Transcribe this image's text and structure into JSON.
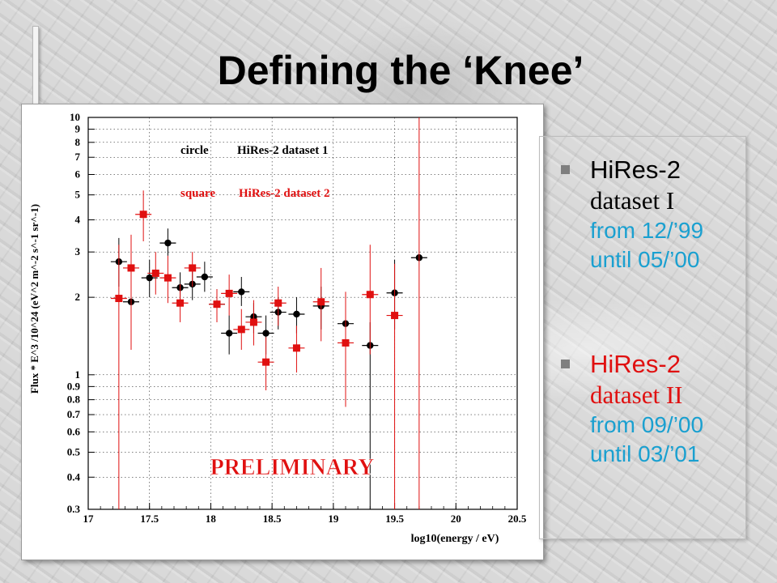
{
  "title": "Defining the ‘Knee’",
  "bullets": [
    {
      "line1": "HiRes-2",
      "line2": "dataset I",
      "date1": "from 12/’99",
      "date2": "until 05/’00",
      "color": "#000000"
    },
    {
      "line1": "HiRes-2",
      "line2": "dataset II",
      "date1": "from 09/’00",
      "date2": "until 03/’01",
      "color": "#e01010"
    }
  ],
  "stamp": "PRELIMINARY",
  "chart_data": {
    "type": "scatter",
    "xlabel": "log10(energy / eV)",
    "ylabel": "Flux * E^3 /10^24 (eV^2 m^-2 s^-1 sr^-1)",
    "xlim": [
      17,
      20.5
    ],
    "ylim": [
      0.3,
      10
    ],
    "yscale": "log",
    "grid": true,
    "x_ticks": [
      "17",
      "17.5",
      "18",
      "18.5",
      "19",
      "19.5",
      "20",
      "20.5"
    ],
    "y_ticks": [
      "0.3",
      "0.4",
      "0.5",
      "0.6",
      "0.7",
      "0.8",
      "0.9",
      "1",
      "2",
      "3",
      "4",
      "5",
      "6",
      "7",
      "8",
      "9",
      "10"
    ],
    "legend": [
      {
        "marker": "circle",
        "label": "HiRes-2 dataset 1",
        "color": "#000000"
      },
      {
        "marker": "square",
        "label": "HiRes-2 dataset 2",
        "color": "#e01010"
      }
    ],
    "series": [
      {
        "color": "#000000",
        "marker": "circle",
        "points": [
          {
            "x": 17.25,
            "y": 2.75,
            "ylo": 2.2,
            "yhi": 3.4
          },
          {
            "x": 17.35,
            "y": 1.92,
            "ylo": 1.6,
            "yhi": 2.3
          },
          {
            "x": 17.5,
            "y": 2.38,
            "ylo": 2.0,
            "yhi": 2.8
          },
          {
            "x": 17.65,
            "y": 3.25,
            "ylo": 2.9,
            "yhi": 3.7
          },
          {
            "x": 17.75,
            "y": 2.18,
            "ylo": 1.9,
            "yhi": 2.5
          },
          {
            "x": 17.85,
            "y": 2.25,
            "ylo": 1.95,
            "yhi": 2.55
          },
          {
            "x": 17.95,
            "y": 2.4,
            "ylo": 2.1,
            "yhi": 2.75
          },
          {
            "x": 18.05,
            "y": 1.88,
            "ylo": 1.65,
            "yhi": 2.15
          },
          {
            "x": 18.15,
            "y": 1.45,
            "ylo": 1.2,
            "yhi": 1.7
          },
          {
            "x": 18.25,
            "y": 2.1,
            "ylo": 1.85,
            "yhi": 2.4
          },
          {
            "x": 18.35,
            "y": 1.68,
            "ylo": 1.45,
            "yhi": 1.9
          },
          {
            "x": 18.45,
            "y": 1.45,
            "ylo": 1.2,
            "yhi": 1.7
          },
          {
            "x": 18.55,
            "y": 1.75,
            "ylo": 1.5,
            "yhi": 2.0
          },
          {
            "x": 18.7,
            "y": 1.72,
            "ylo": 1.45,
            "yhi": 2.0
          },
          {
            "x": 18.9,
            "y": 1.85,
            "ylo": 1.5,
            "yhi": 2.2
          },
          {
            "x": 19.1,
            "y": 1.58,
            "ylo": 1.2,
            "yhi": 2.0
          },
          {
            "x": 19.3,
            "y": 1.3,
            "ylo": 0.3,
            "yhi": 1.6
          },
          {
            "x": 19.5,
            "y": 2.08,
            "ylo": 1.5,
            "yhi": 2.8
          },
          {
            "x": 19.7,
            "y": 2.85,
            "ylo": 2.85,
            "yhi": 2.85
          }
        ]
      },
      {
        "color": "#e01010",
        "marker": "square",
        "points": [
          {
            "x": 17.25,
            "y": 1.98,
            "ylo": 0.3,
            "yhi": 3.2
          },
          {
            "x": 17.35,
            "y": 2.6,
            "ylo": 1.25,
            "yhi": 3.5
          },
          {
            "x": 17.45,
            "y": 4.2,
            "ylo": 3.3,
            "yhi": 5.2
          },
          {
            "x": 17.55,
            "y": 2.48,
            "ylo": 2.05,
            "yhi": 3.0
          },
          {
            "x": 17.65,
            "y": 2.38,
            "ylo": 1.9,
            "yhi": 2.9
          },
          {
            "x": 17.75,
            "y": 1.9,
            "ylo": 1.6,
            "yhi": 2.25
          },
          {
            "x": 17.85,
            "y": 2.6,
            "ylo": 2.2,
            "yhi": 3.0
          },
          {
            "x": 18.05,
            "y": 1.88,
            "ylo": 1.6,
            "yhi": 2.15
          },
          {
            "x": 18.15,
            "y": 2.07,
            "ylo": 1.7,
            "yhi": 2.45
          },
          {
            "x": 18.25,
            "y": 1.5,
            "ylo": 1.25,
            "yhi": 1.8
          },
          {
            "x": 18.35,
            "y": 1.6,
            "ylo": 1.3,
            "yhi": 1.95
          },
          {
            "x": 18.45,
            "y": 1.12,
            "ylo": 0.87,
            "yhi": 1.4
          },
          {
            "x": 18.55,
            "y": 1.9,
            "ylo": 1.55,
            "yhi": 2.2
          },
          {
            "x": 18.7,
            "y": 1.27,
            "ylo": 1.02,
            "yhi": 1.55
          },
          {
            "x": 18.9,
            "y": 1.92,
            "ylo": 1.35,
            "yhi": 2.6
          },
          {
            "x": 19.1,
            "y": 1.33,
            "ylo": 0.75,
            "yhi": 2.1
          },
          {
            "x": 19.3,
            "y": 2.05,
            "ylo": 1.2,
            "yhi": 3.2
          },
          {
            "x": 19.5,
            "y": 1.7,
            "ylo": 0.3,
            "yhi": 2.7
          },
          {
            "x": 19.7,
            "y": null,
            "ylo": 0.3,
            "yhi": 10
          }
        ]
      }
    ]
  }
}
